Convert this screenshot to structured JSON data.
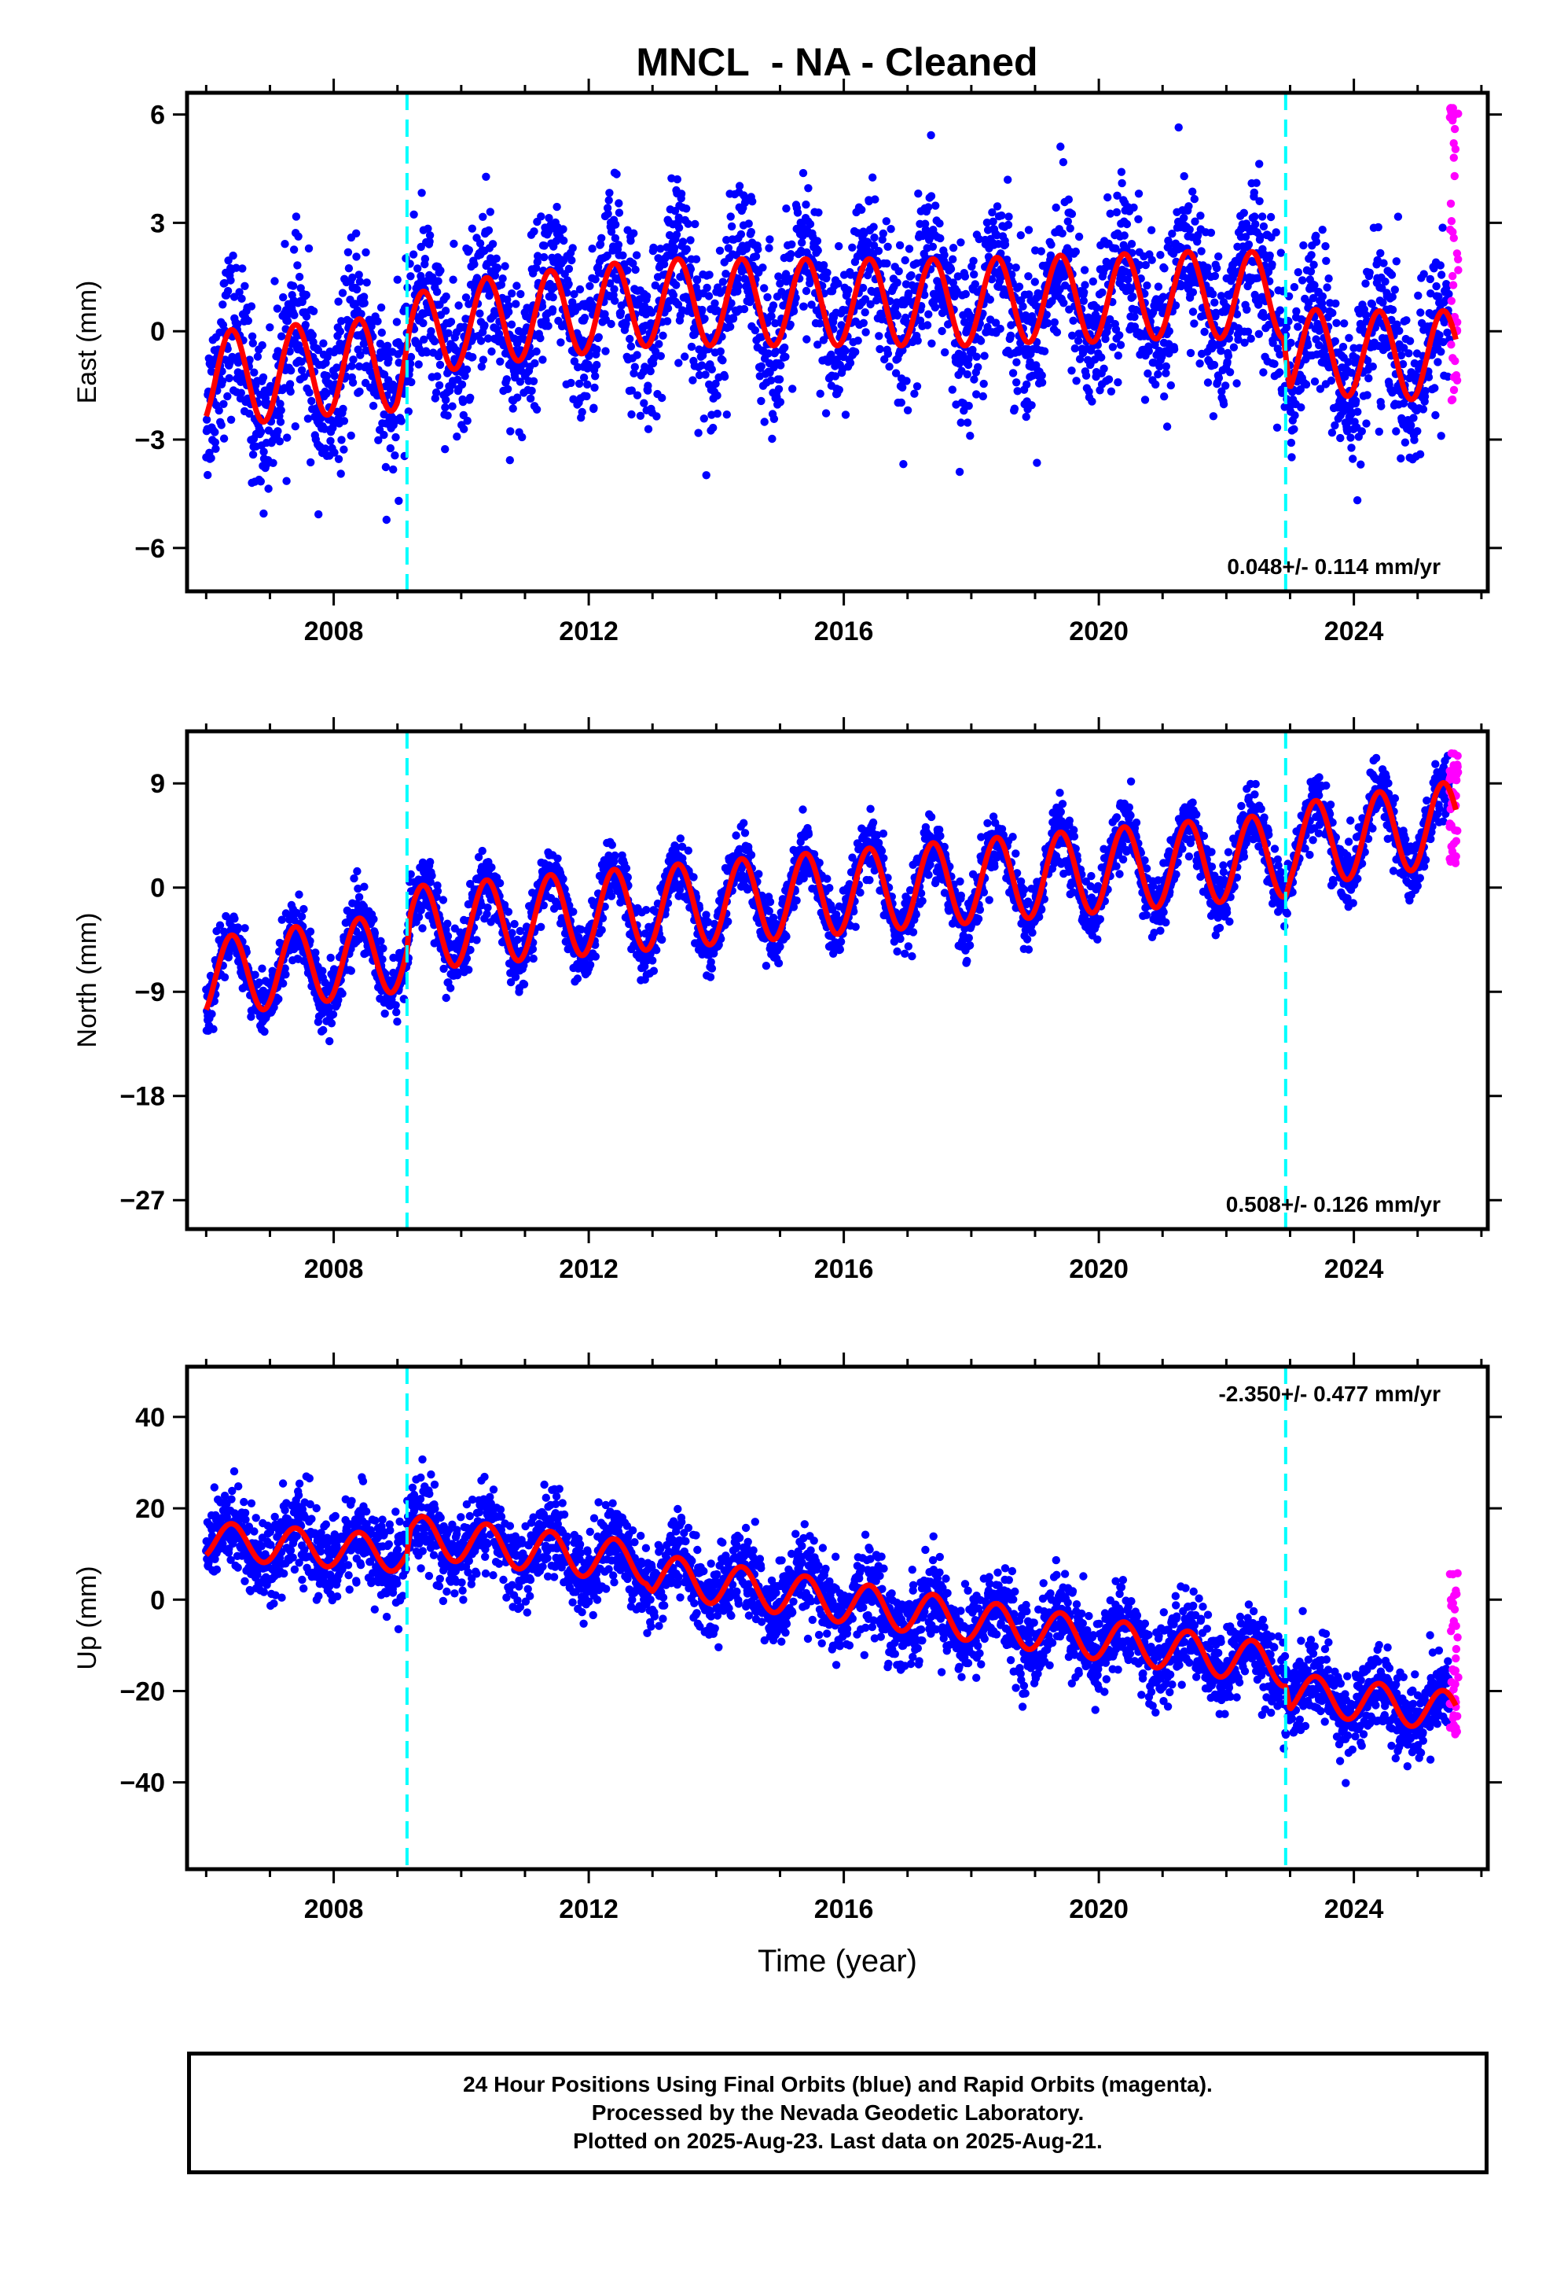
{
  "page": {
    "title": "MNCL  - NA - Cleaned"
  },
  "colors": {
    "final": "#0000ff",
    "rapid": "#ff00ff",
    "model": "#ff0000",
    "offset": "#00ffff",
    "frame": "#000000"
  },
  "footer": {
    "line1": "24 Hour Positions Using Final Orbits (blue) and Rapid Orbits (magenta).",
    "line2": "Processed by the Nevada Geodetic Laboratory.",
    "line3": "Plotted on 2025-Aug-23. Last data on 2025-Aug-21."
  },
  "chart_data": [
    {
      "type": "scatter",
      "component": "east",
      "ylabel": "East (mm)",
      "xlabel": "",
      "xlim": [
        2005.7,
        2026.1
      ],
      "ylim": [
        -7.2,
        6.6
      ],
      "xticks": [
        2008,
        2012,
        2016,
        2020,
        2024
      ],
      "yticks": [
        6,
        3,
        0,
        -3,
        -6
      ],
      "rate_label": "0.048+/- 0.114 mm/yr",
      "offsets": [
        2009.15,
        2022.93
      ],
      "series": [
        {
          "color": "#0000ff",
          "x_range": [
            2006.0,
            2025.5
          ],
          "noise": 1.1
        },
        {
          "color": "#ff00ff",
          "x_range": [
            2025.5,
            2025.64
          ],
          "y_range": [
            -2,
            6.4
          ]
        }
      ],
      "model": {
        "color": "#ff0000",
        "x": [
          2006.0,
          2007.0,
          2008.0,
          2009.0,
          2009.2,
          2010.0,
          2011.0,
          2012.0,
          2013.0,
          2014.0,
          2015.0,
          2016.0,
          2017.0,
          2018.0,
          2019.0,
          2020.0,
          2021.0,
          2022.0,
          2022.9,
          2023.0,
          2024.0,
          2025.0,
          2025.6
        ],
        "y": [
          -1.3,
          -1.2,
          -1.0,
          -0.9,
          -0.2,
          0.2,
          0.4,
          0.6,
          0.8,
          0.8,
          0.8,
          0.8,
          0.8,
          0.8,
          0.9,
          0.9,
          1.0,
          1.0,
          1.0,
          -0.6,
          -0.6,
          -0.7,
          -0.6
        ],
        "seasonal": [
          [
            2006.0,
            2009.15,
            1.3
          ],
          [
            2009.15,
            2022.93,
            1.2
          ],
          [
            2022.93,
            2025.7,
            1.2
          ]
        ]
      }
    },
    {
      "type": "scatter",
      "component": "north",
      "ylabel": "North (mm)",
      "xlabel": "",
      "xlim": [
        2005.7,
        2026.1
      ],
      "ylim": [
        -29.5,
        13.5
      ],
      "xticks": [
        2008,
        2012,
        2016,
        2020,
        2024
      ],
      "yticks": [
        9,
        0,
        -9,
        -18,
        -27
      ],
      "rate_label": "0.508+/- 0.126 mm/yr",
      "offsets": [
        2009.15,
        2022.93
      ],
      "series": [
        {
          "color": "#0000ff",
          "x_range": [
            2006.0,
            2025.5
          ],
          "noise": 1.3
        },
        {
          "color": "#ff00ff",
          "x_range": [
            2025.5,
            2025.64
          ],
          "y_range": [
            2,
            12
          ]
        }
      ],
      "model": {
        "color": "#ff0000",
        "x": [
          2006.0,
          2009.15,
          2009.2,
          2022.93,
          2023.0,
          2025.6
        ],
        "y": [
          -7.8,
          -5.5,
          -3.5,
          2.8,
          3.6,
          5.6
        ],
        "seasonal": [
          [
            2006.0,
            2009.15,
            3.4
          ],
          [
            2009.15,
            2022.93,
            3.6
          ],
          [
            2022.93,
            2025.7,
            3.6
          ]
        ]
      }
    },
    {
      "type": "scatter",
      "component": "up",
      "ylabel": "Up (mm)",
      "xlabel": "Time (year)",
      "xlim": [
        2005.7,
        2026.1
      ],
      "ylim": [
        -59,
        51
      ],
      "xticks": [
        2008,
        2012,
        2016,
        2020,
        2024
      ],
      "yticks": [
        40,
        20,
        0,
        -20,
        -40
      ],
      "rate_label": "-2.350+/- 0.477 mm/yr",
      "offsets": [
        2009.15,
        2022.93
      ],
      "series": [
        {
          "color": "#0000ff",
          "x_range": [
            2006.0,
            2025.5
          ],
          "noise": 4.5
        },
        {
          "color": "#ff00ff",
          "x_range": [
            2025.5,
            2025.64
          ],
          "y_range": [
            -30,
            8
          ]
        }
      ],
      "model": {
        "color": "#ff0000",
        "x": [
          2006.0,
          2009.15,
          2009.2,
          2012.9,
          2013.0,
          2022.93,
          2023.0,
          2025.6
        ],
        "y": [
          13.0,
          10.0,
          14.0,
          8.0,
          5.5,
          -14.5,
          -20.5,
          -24.5
        ],
        "seasonal": [
          [
            2006.0,
            2009.15,
            4.0
          ],
          [
            2009.15,
            2022.93,
            4.5
          ],
          [
            2022.93,
            2025.7,
            4.3
          ]
        ]
      }
    }
  ]
}
